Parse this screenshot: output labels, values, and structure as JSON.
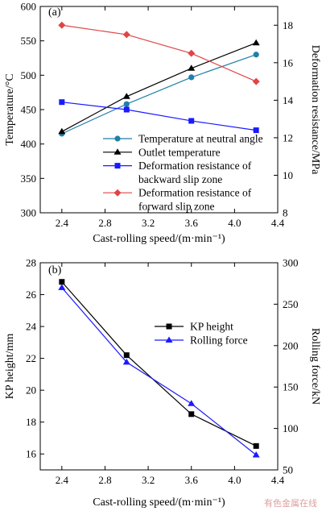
{
  "watermark": "有色金属在线",
  "chart_data": [
    {
      "type": "line",
      "panel_label": "(a)",
      "xlabel": "Cast-rolling speed/(m·min⁻¹)",
      "xlim": [
        2.2,
        4.4
      ],
      "xticks": [
        "2.4",
        "2.8",
        "3.2",
        "3.6",
        "4.0",
        "4.4"
      ],
      "ylabel": "Temperature/°C",
      "ylim": [
        300,
        600
      ],
      "yticks": [
        "300",
        "350",
        "400",
        "450",
        "500",
        "550",
        "600"
      ],
      "y2label": "Deformation resistance/MPa",
      "y2lim": [
        8,
        19
      ],
      "y2ticks": [
        "8",
        "10",
        "12",
        "14",
        "16",
        "18"
      ],
      "grid": false,
      "legend_position": "bottom-right",
      "series": [
        {
          "name": "Temperature at neutral angle",
          "axis": "left",
          "color": "#1f7fa8",
          "marker": "circle",
          "x": [
            2.4,
            3.0,
            3.6,
            4.2
          ],
          "values": [
            415,
            458,
            497,
            530
          ]
        },
        {
          "name": "Outlet temperature",
          "axis": "left",
          "color": "#000000",
          "marker": "triangle",
          "x": [
            2.4,
            3.0,
            3.6,
            4.2
          ],
          "values": [
            418,
            469,
            510,
            547
          ]
        },
        {
          "name": "Deformation resistance of backward slip zone",
          "legend_lines": [
            "Deformation resistance of",
            "backward slip zone"
          ],
          "axis": "right",
          "color": "#1a1aff",
          "marker": "square",
          "x": [
            2.4,
            3.0,
            3.6,
            4.2
          ],
          "values": [
            13.9,
            13.5,
            12.9,
            12.4
          ]
        },
        {
          "name": "Deformation resistance of forward slip zone",
          "legend_lines": [
            "Deformation resistance of",
            "forward slip zone"
          ],
          "axis": "right",
          "color": "#e04545",
          "marker": "diamond",
          "x": [
            2.4,
            3.0,
            3.6,
            4.2
          ],
          "values": [
            18.0,
            17.5,
            16.5,
            15.0
          ]
        }
      ]
    },
    {
      "type": "line",
      "panel_label": "(b)",
      "xlabel": "Cast-rolling speed/(m·min⁻¹)",
      "xlim": [
        2.2,
        4.4
      ],
      "xticks": [
        "2.4",
        "2.8",
        "3.2",
        "3.6",
        "4.0",
        "4.4"
      ],
      "ylabel": "KP height/mm",
      "ylim": [
        15,
        28
      ],
      "yticks": [
        "16",
        "18",
        "20",
        "22",
        "24",
        "26",
        "28"
      ],
      "y2label": "Rolling force/kN",
      "y2lim": [
        50,
        300
      ],
      "y2ticks": [
        "50",
        "100",
        "150",
        "200",
        "250",
        "300"
      ],
      "grid": false,
      "legend_position": "center-right",
      "series": [
        {
          "name": "KP height",
          "axis": "left",
          "color": "#000000",
          "marker": "square",
          "x": [
            2.4,
            3.0,
            3.6,
            4.2
          ],
          "values": [
            26.8,
            22.2,
            18.5,
            16.5
          ]
        },
        {
          "name": "Rolling force",
          "axis": "right",
          "color": "#1a1aff",
          "marker": "triangle",
          "x": [
            2.4,
            3.0,
            3.6,
            4.2
          ],
          "values": [
            270,
            180,
            130,
            68
          ]
        }
      ]
    }
  ]
}
